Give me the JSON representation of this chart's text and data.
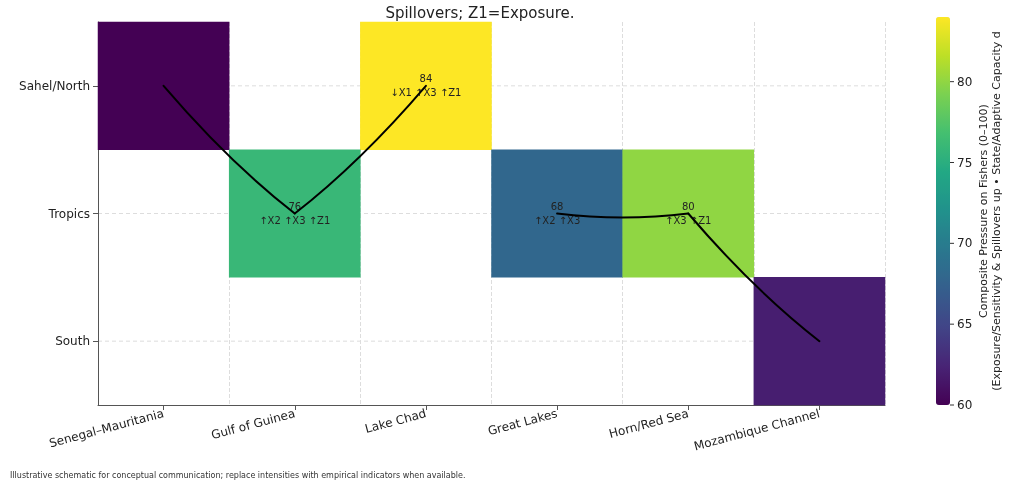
{
  "chart_data": {
    "type": "heatmap",
    "title": "Spillovers; Z1=Exposure.",
    "categories": [
      "Senegal–Mauritania",
      "Gulf of Guinea",
      "Lake Chad",
      "Great Lakes",
      "Horn/Red Sea",
      "Mozambique Channel"
    ],
    "y_categories": [
      "Sahel/North",
      "Tropics",
      "South"
    ],
    "cells": [
      [
        60,
        null,
        84,
        null,
        null,
        null
      ],
      [
        null,
        76,
        null,
        68,
        80,
        null
      ],
      [
        null,
        null,
        null,
        null,
        null,
        62
      ]
    ],
    "cell_labels": [
      [
        null,
        null,
        "84\n↓X1 ↑X3 ↑Z1",
        null,
        null,
        null
      ],
      [
        null,
        "76\n↑X2 ↑X3 ↑Z1",
        null,
        "68\n↑X2 ↑X3",
        "80\n↑X3 ↑Z1",
        null
      ],
      [
        null,
        null,
        null,
        null,
        null,
        null
      ]
    ],
    "clim": [
      60,
      84
    ],
    "cticks": [
      60,
      65,
      70,
      75,
      80
    ],
    "clabel": "Composite Pressure on Fishers (0–100)\n(Exposure/Sensitivity & Spillovers up • State/Adaptive Capacity d",
    "grid": true,
    "annotations": [
      "Illustrative schematic for conceptual communication; replace intensities with empirical indicators when available."
    ]
  }
}
